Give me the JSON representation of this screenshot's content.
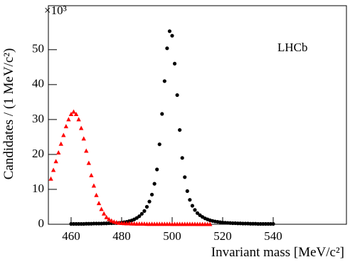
{
  "chart_data": {
    "type": "scatter",
    "x_label": "Invariant mass [MeV/c²]",
    "y_label": "Candidates / (1 MeV/c²)",
    "y_multiplier": "×10³",
    "annotation": "LHCb",
    "xlim": [
      451,
      569
    ],
    "ylim": [
      0,
      62.6
    ],
    "xticks": [
      460,
      480,
      500,
      520,
      540
    ],
    "yticks": [
      0,
      10,
      20,
      30,
      40,
      50
    ],
    "series": [
      {
        "color": "#000000",
        "marker": "circle",
        "x": [
          460,
          461,
          462,
          463,
          464,
          465,
          466,
          467,
          468,
          469,
          470,
          471,
          472,
          473,
          474,
          475,
          476,
          477,
          478,
          479,
          480,
          481,
          482,
          483,
          484,
          485,
          486,
          487,
          488,
          489,
          490,
          491,
          492,
          493,
          494,
          495,
          496,
          497,
          498,
          499,
          500,
          501,
          502,
          503,
          504,
          505,
          506,
          507,
          508,
          509,
          510,
          511,
          512,
          513,
          514,
          515,
          516,
          517,
          518,
          519,
          520,
          521,
          522,
          523,
          524,
          525,
          526,
          527,
          528,
          529,
          530,
          531,
          532,
          533,
          534,
          535,
          536,
          537,
          538,
          539,
          540
        ],
        "values": [
          0.1,
          0.1,
          0.1,
          0.1,
          0.1,
          0.1,
          0.15,
          0.15,
          0.15,
          0.2,
          0.2,
          0.2,
          0.2,
          0.25,
          0.25,
          0.3,
          0.3,
          0.35,
          0.35,
          0.4,
          0.5,
          0.6,
          0.7,
          0.9,
          1.1,
          1.4,
          1.8,
          2.3,
          3,
          3.8,
          5,
          6.5,
          8.5,
          11.6,
          15.7,
          22.9,
          31.6,
          41,
          50.4,
          55.3,
          54,
          46,
          37,
          27,
          19,
          13.5,
          9.5,
          7,
          5.3,
          4.1,
          3.2,
          2.6,
          2.1,
          1.7,
          1.4,
          1.15,
          0.95,
          0.8,
          0.7,
          0.6,
          0.5,
          0.45,
          0.4,
          0.35,
          0.3,
          0.3,
          0.25,
          0.25,
          0.2,
          0.2,
          0.2,
          0.15,
          0.15,
          0.15,
          0.1,
          0.1,
          0.1,
          0.1,
          0.1,
          0.1,
          0.1
        ]
      },
      {
        "color": "#ff0000",
        "marker": "triangle",
        "x": [
          452,
          453,
          454,
          455,
          456,
          457,
          458,
          459,
          460,
          461,
          462,
          463,
          464,
          465,
          466,
          467,
          468,
          469,
          470,
          471,
          472,
          473,
          474,
          475,
          476,
          477,
          478,
          479,
          480,
          481,
          482,
          483,
          484,
          485,
          486,
          487,
          488,
          489,
          490,
          491,
          492,
          493,
          494,
          495,
          496,
          497,
          498,
          499,
          500,
          501,
          502,
          503,
          504,
          505,
          506,
          507,
          508,
          509,
          510,
          511,
          512,
          513,
          514,
          515
        ],
        "values": [
          13,
          15.5,
          18,
          20.5,
          23,
          25.5,
          28,
          30,
          31.5,
          32.2,
          31.5,
          30,
          27.5,
          24.5,
          21,
          17.5,
          14,
          11,
          8.3,
          6,
          4.3,
          3,
          2,
          1.4,
          1,
          0.7,
          0.5,
          0.35,
          0.3,
          0.25,
          0.2,
          0.2,
          0.15,
          0.15,
          0.1,
          0.1,
          0.1,
          0.1,
          0.05,
          0.05,
          0.05,
          0.05,
          0.05,
          0.05,
          0.05,
          0.05,
          0.05,
          0.05,
          0.02,
          0.02,
          0.02,
          0.02,
          0.02,
          0.02,
          0.02,
          0.02,
          0.02,
          0.02,
          0.01,
          0.01,
          0.01,
          0.01,
          0.01,
          0.01
        ]
      }
    ]
  }
}
